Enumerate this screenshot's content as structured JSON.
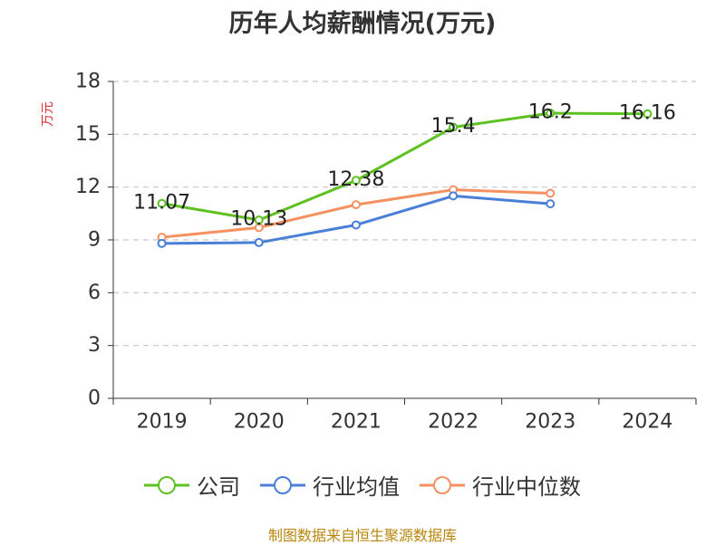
{
  "chart_data": {
    "type": "line",
    "title": "历年人均薪酬情况(万元)",
    "ylabel": "万元",
    "xlabel": "",
    "categories": [
      "2019",
      "2020",
      "2021",
      "2022",
      "2023",
      "2024"
    ],
    "ylim": [
      0,
      18
    ],
    "yticks": [
      0,
      3,
      6,
      9,
      12,
      15,
      18
    ],
    "grid": true,
    "legend_position": "bottom",
    "series": [
      {
        "name": "公司",
        "color": "#5cc121",
        "values": [
          11.07,
          10.13,
          12.38,
          15.4,
          16.2,
          16.16
        ],
        "show_labels": true
      },
      {
        "name": "行业均值",
        "color": "#4a7fd8",
        "values": [
          8.8,
          8.85,
          9.85,
          11.5,
          11.05,
          null
        ],
        "show_labels": false
      },
      {
        "name": "行业中位数",
        "color": "#f59160",
        "values": [
          9.15,
          9.7,
          11.0,
          11.85,
          11.65,
          null
        ],
        "show_labels": false
      }
    ]
  },
  "source_text": "制图数据来自恒生聚源数据库"
}
